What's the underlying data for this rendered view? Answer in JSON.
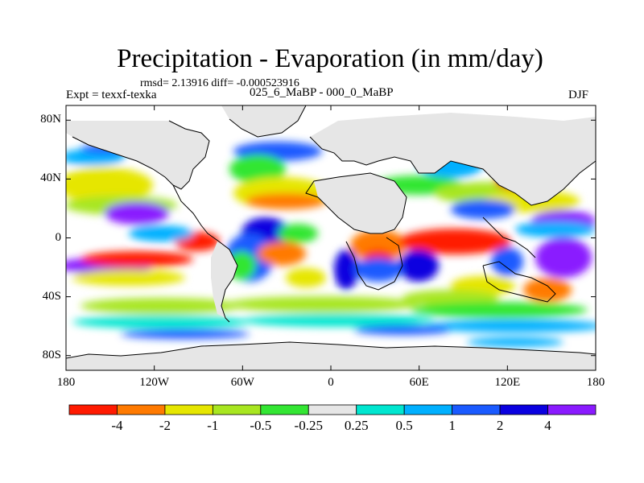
{
  "figure": {
    "title": "Precipitation - Evaporation (in mm/day)",
    "stats": "rmsd= 2.13916 diff= -0.000523916",
    "experiment": "Expt = texxf-texka",
    "subtitle": "025_6_MaBP - 000_0_MaBP",
    "season": "DJF"
  },
  "axes": {
    "y_ticks": [
      "80N",
      "40N",
      "0",
      "40S",
      "80S"
    ],
    "y_values": [
      80,
      40,
      0,
      -40,
      -80
    ],
    "x_ticks": [
      "180",
      "120W",
      "60W",
      "0",
      "60E",
      "120E",
      "180"
    ],
    "x_values": [
      -180,
      -120,
      -60,
      0,
      60,
      120,
      180
    ],
    "lat_range": [
      -90,
      90
    ],
    "lon_range": [
      -180,
      180
    ]
  },
  "colorbar": {
    "labels": [
      "-4",
      "-2",
      "-1",
      "-0.5",
      "-0.25",
      "0.25",
      "0.5",
      "1",
      "2",
      "4"
    ],
    "colors": [
      "#ff1a00",
      "#ff7a00",
      "#e6e600",
      "#a8e620",
      "#33e633",
      "#e6e6e6",
      "#00e6d0",
      "#00b0ff",
      "#1a5aff",
      "#0a00e0",
      "#8a1aff"
    ]
  },
  "map_colors": {
    "land_neutral": "#e6e6e6",
    "ocean_background": "#ffffff",
    "coastline": "#000000"
  }
}
